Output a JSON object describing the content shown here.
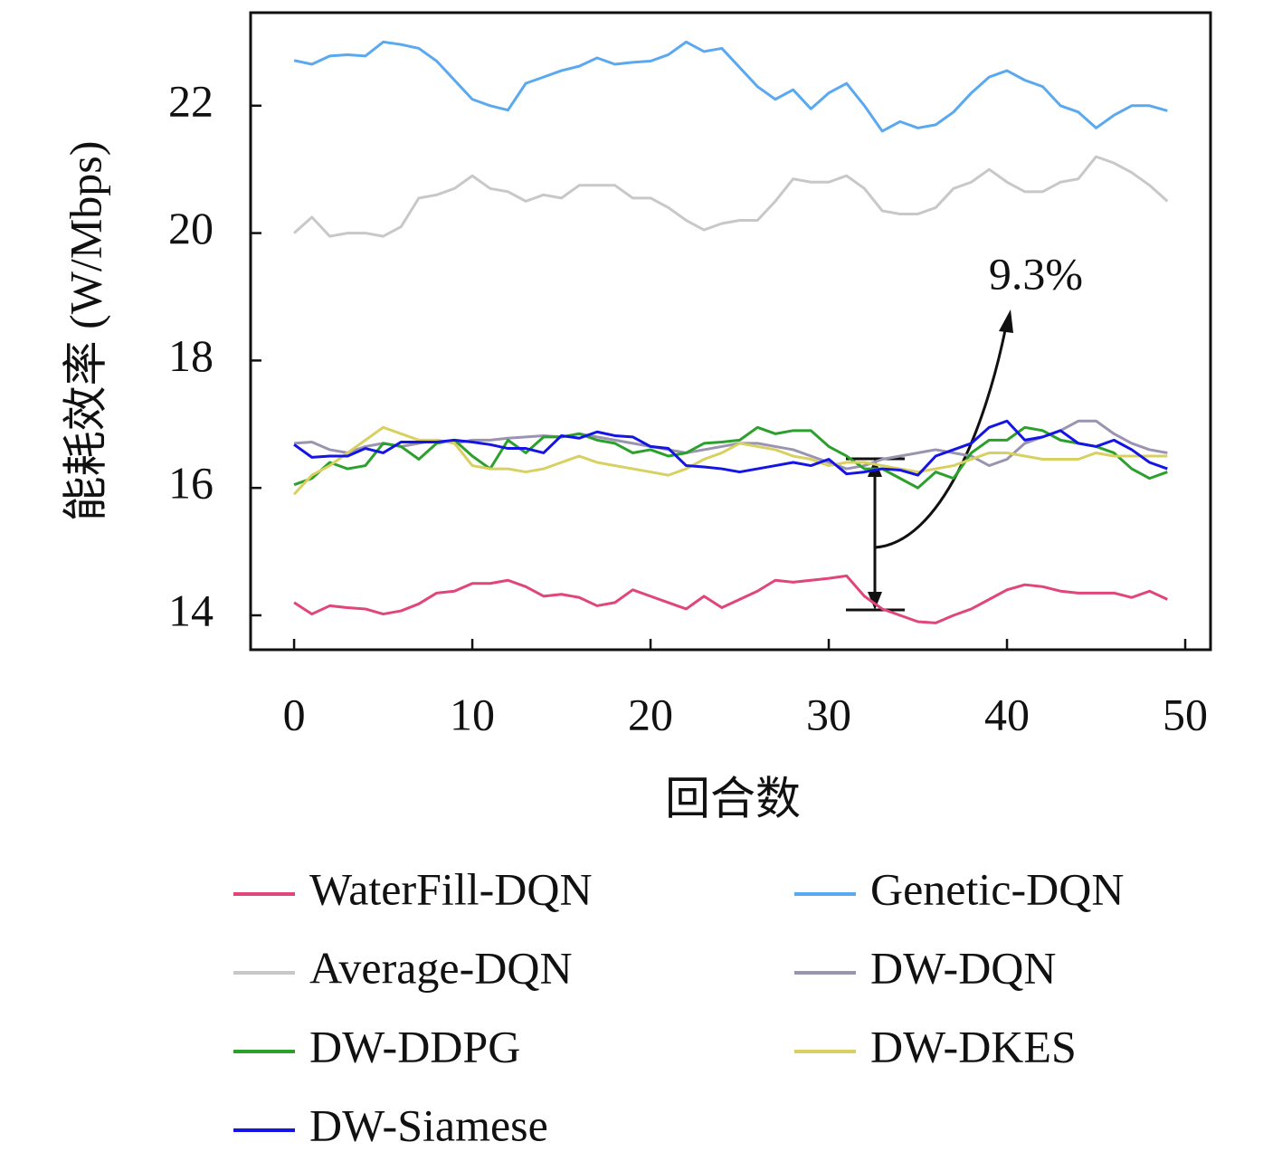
{
  "chart_data": {
    "type": "line",
    "x_label": "回合数",
    "y_label": "能耗效率 (W/Mbps)",
    "annotation": "9.3%",
    "x": [
      0,
      1,
      2,
      3,
      4,
      5,
      6,
      7,
      8,
      9,
      10,
      11,
      12,
      13,
      14,
      15,
      16,
      17,
      18,
      19,
      20,
      21,
      22,
      23,
      24,
      25,
      26,
      27,
      28,
      29,
      30,
      31,
      32,
      33,
      34,
      35,
      36,
      37,
      38,
      39,
      40,
      41,
      42,
      43,
      44,
      45,
      46,
      47,
      48,
      49
    ],
    "xlim": [
      -2.44,
      51.42
    ],
    "xticks": [
      0,
      10,
      20,
      30,
      40,
      50
    ],
    "ylim": [
      13.46,
      23.46
    ],
    "yticks": [
      14,
      16,
      18,
      20,
      22
    ],
    "series": [
      {
        "name": "WaterFill-DQN",
        "color": "#e0457b",
        "values": [
          14.2,
          14.02,
          14.15,
          14.12,
          14.1,
          14.02,
          14.07,
          14.18,
          14.35,
          14.38,
          14.5,
          14.5,
          14.55,
          14.45,
          14.3,
          14.33,
          14.28,
          14.15,
          14.2,
          14.4,
          14.3,
          14.2,
          14.1,
          14.3,
          14.12,
          14.25,
          14.38,
          14.55,
          14.52,
          14.55,
          14.58,
          14.62,
          14.3,
          14.1,
          14.0,
          13.9,
          13.88,
          14.0,
          14.1,
          14.25,
          14.4,
          14.48,
          14.45,
          14.38,
          14.35,
          14.35,
          14.35,
          14.28,
          14.38,
          14.25
        ]
      },
      {
        "name": "Genetic-DQN",
        "color": "#5aa9f0",
        "values": [
          22.71,
          22.65,
          22.78,
          22.8,
          22.78,
          23.0,
          22.96,
          22.9,
          22.7,
          22.4,
          22.1,
          22.0,
          21.93,
          22.35,
          22.45,
          22.55,
          22.62,
          22.75,
          22.65,
          22.68,
          22.7,
          22.8,
          23.0,
          22.85,
          22.9,
          22.6,
          22.3,
          22.1,
          22.25,
          21.95,
          22.2,
          22.35,
          22.0,
          21.6,
          21.75,
          21.65,
          21.7,
          21.9,
          22.2,
          22.45,
          22.55,
          22.4,
          22.3,
          22.0,
          21.9,
          21.65,
          21.85,
          22.0,
          22.0,
          21.92
        ]
      },
      {
        "name": "Average-DQN",
        "color": "#c8c8c8",
        "values": [
          20.0,
          20.25,
          19.95,
          20.0,
          20.0,
          19.95,
          20.1,
          20.55,
          20.6,
          20.7,
          20.9,
          20.7,
          20.65,
          20.5,
          20.6,
          20.55,
          20.75,
          20.75,
          20.75,
          20.55,
          20.55,
          20.4,
          20.2,
          20.05,
          20.15,
          20.2,
          20.2,
          20.5,
          20.85,
          20.8,
          20.8,
          20.9,
          20.7,
          20.35,
          20.3,
          20.3,
          20.4,
          20.7,
          20.8,
          21.0,
          20.8,
          20.65,
          20.65,
          20.8,
          20.85,
          21.2,
          21.1,
          20.95,
          20.75,
          20.5
        ]
      },
      {
        "name": "DW-DQN",
        "color": "#9a94b0",
        "values": [
          16.7,
          16.72,
          16.6,
          16.55,
          16.65,
          16.7,
          16.65,
          16.7,
          16.75,
          16.7,
          16.75,
          16.75,
          16.78,
          16.8,
          16.82,
          16.8,
          16.85,
          16.8,
          16.75,
          16.7,
          16.65,
          16.6,
          16.55,
          16.6,
          16.65,
          16.7,
          16.7,
          16.65,
          16.6,
          16.5,
          16.4,
          16.3,
          16.35,
          16.45,
          16.5,
          16.55,
          16.6,
          16.55,
          16.5,
          16.35,
          16.45,
          16.7,
          16.8,
          16.9,
          17.05,
          17.05,
          16.85,
          16.7,
          16.6,
          16.55
        ]
      },
      {
        "name": "DW-DDPG",
        "color": "#2ca02c",
        "values": [
          16.05,
          16.15,
          16.4,
          16.3,
          16.35,
          16.7,
          16.65,
          16.45,
          16.7,
          16.75,
          16.5,
          16.3,
          16.75,
          16.55,
          16.8,
          16.8,
          16.85,
          16.75,
          16.7,
          16.55,
          16.6,
          16.5,
          16.55,
          16.7,
          16.72,
          16.75,
          16.95,
          16.85,
          16.9,
          16.9,
          16.65,
          16.5,
          16.3,
          16.3,
          16.15,
          16.0,
          16.25,
          16.15,
          16.55,
          16.75,
          16.75,
          16.95,
          16.9,
          16.75,
          16.7,
          16.65,
          16.55,
          16.3,
          16.15,
          16.25
        ]
      },
      {
        "name": "DW-DKES",
        "color": "#d8d060",
        "values": [
          15.9,
          16.2,
          16.35,
          16.55,
          16.75,
          16.95,
          16.85,
          16.75,
          16.75,
          16.7,
          16.35,
          16.3,
          16.3,
          16.25,
          16.3,
          16.4,
          16.5,
          16.4,
          16.35,
          16.3,
          16.25,
          16.2,
          16.3,
          16.45,
          16.55,
          16.7,
          16.65,
          16.6,
          16.5,
          16.45,
          16.35,
          16.4,
          16.4,
          16.35,
          16.3,
          16.25,
          16.3,
          16.35,
          16.45,
          16.55,
          16.55,
          16.5,
          16.45,
          16.45,
          16.45,
          16.55,
          16.5,
          16.5,
          16.5,
          16.5
        ]
      },
      {
        "name": "DW-Siamese",
        "color": "#1414e6",
        "values": [
          16.68,
          16.48,
          16.5,
          16.5,
          16.62,
          16.55,
          16.72,
          16.72,
          16.72,
          16.75,
          16.72,
          16.68,
          16.62,
          16.62,
          16.55,
          16.82,
          16.78,
          16.88,
          16.82,
          16.8,
          16.65,
          16.62,
          16.35,
          16.33,
          16.3,
          16.25,
          16.3,
          16.35,
          16.4,
          16.35,
          16.45,
          16.22,
          16.25,
          16.3,
          16.28,
          16.2,
          16.5,
          16.6,
          16.7,
          16.95,
          17.05,
          16.75,
          16.8,
          16.9,
          16.7,
          16.65,
          16.75,
          16.6,
          16.4,
          16.3
        ]
      }
    ]
  }
}
